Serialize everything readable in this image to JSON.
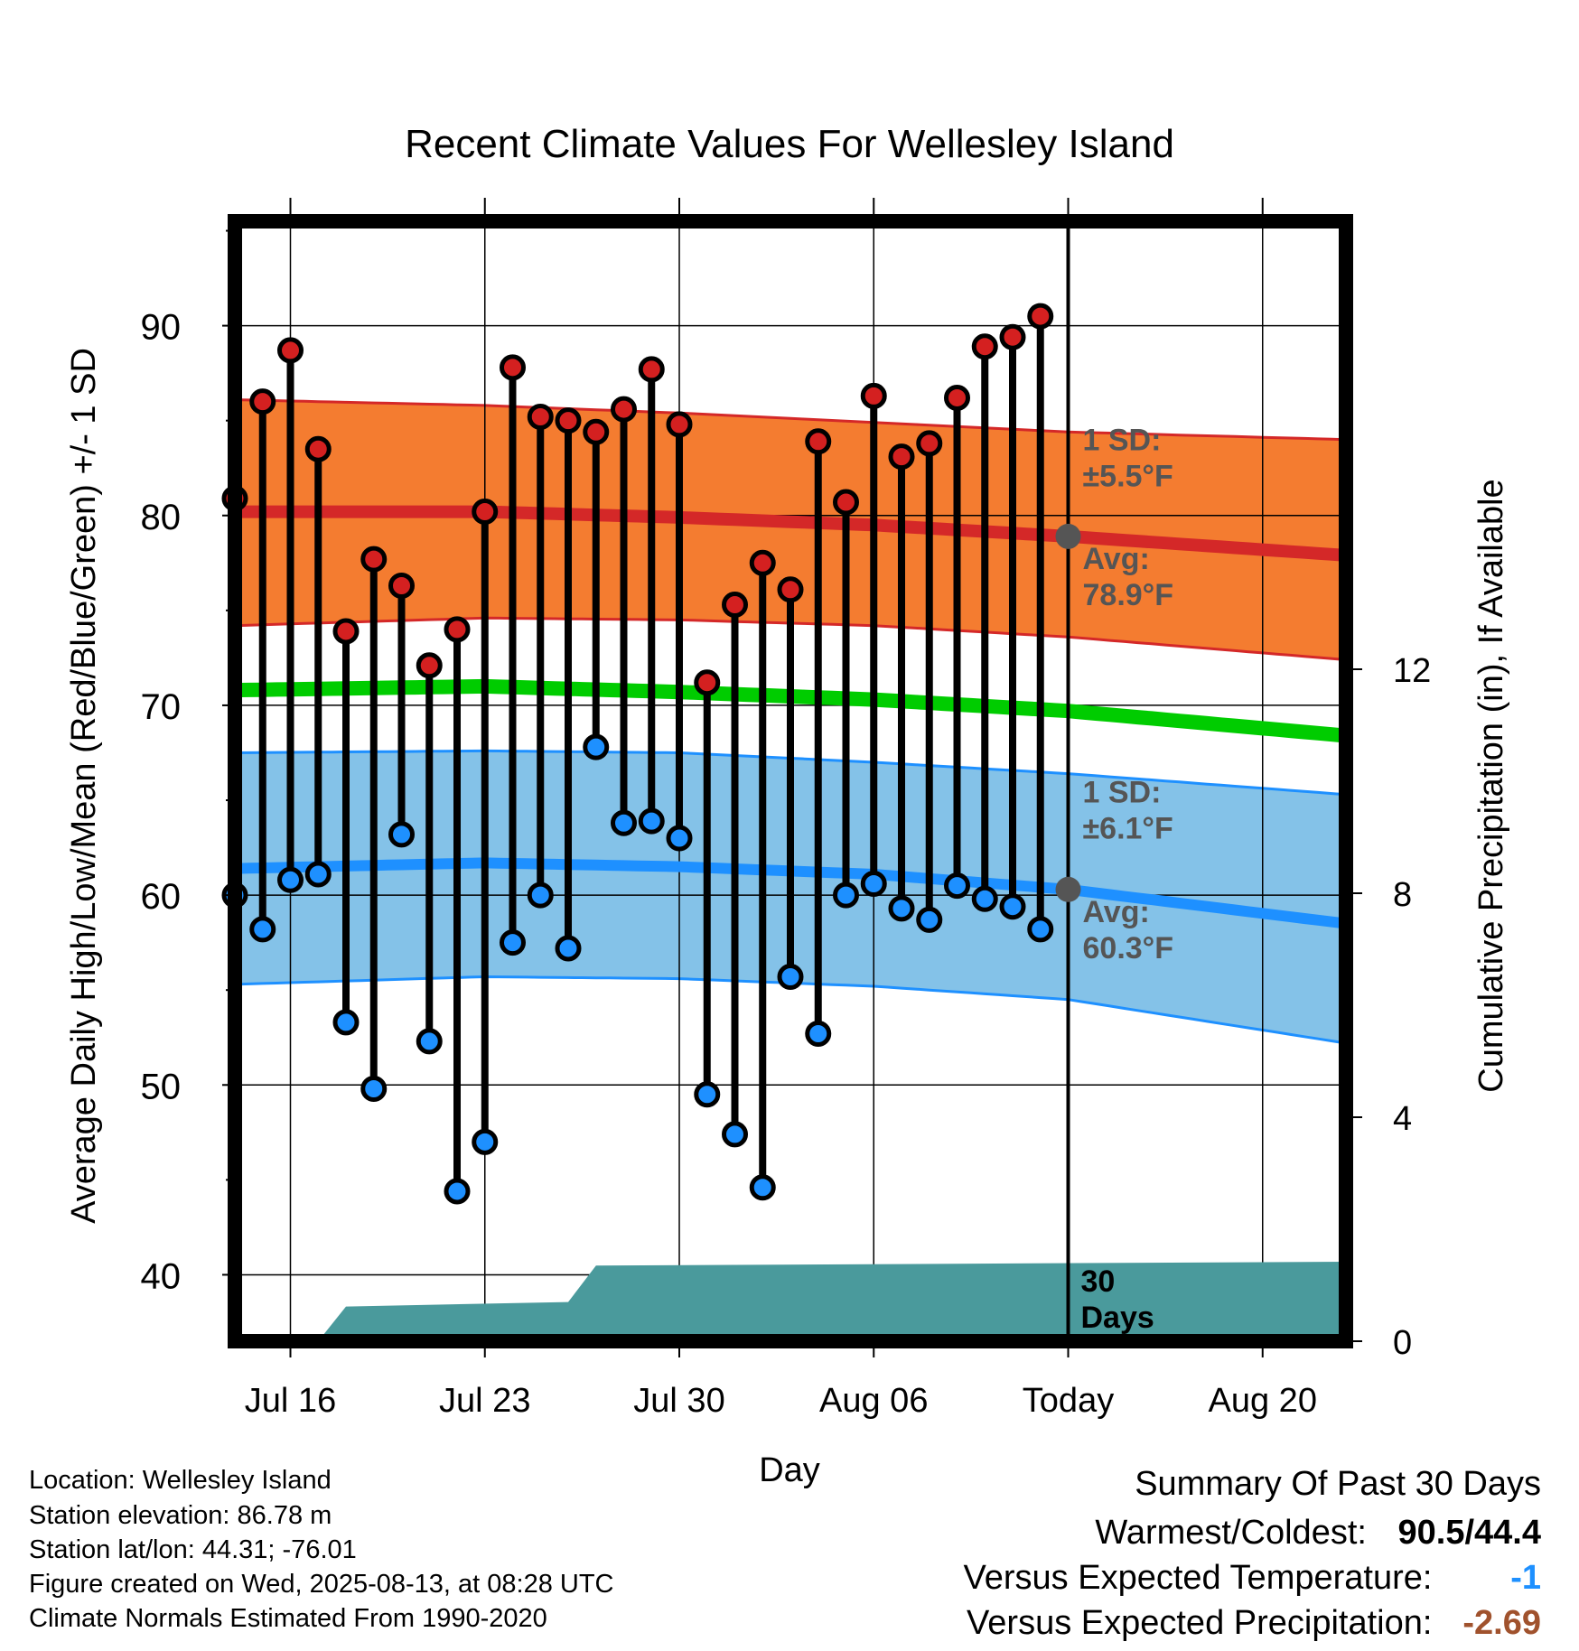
{
  "chart_data": {
    "type": "line",
    "title": "Recent Climate Values For Wellesley Island",
    "xlabel": "Day",
    "ylabel": "Average Daily High/Low/Mean (Red/Blue/Green) +/- 1 SD",
    "y2label": "Cumulative Precipitation (in), If Available",
    "ylim": [
      36.5,
      95.5
    ],
    "y_ticks": [
      40,
      50,
      60,
      70,
      80,
      90
    ],
    "y2lim": [
      0,
      20
    ],
    "y2_ticks": [
      0,
      4,
      8,
      12
    ],
    "x_start": "Jul 14",
    "x_end": "Aug 23",
    "x_ticks": [
      {
        "date": "Jul 16",
        "label": "Jul 16"
      },
      {
        "date": "Jul 23",
        "label": "Jul 23"
      },
      {
        "date": "Jul 30",
        "label": "Jul 30"
      },
      {
        "date": "Aug 06",
        "label": "Aug 06"
      },
      {
        "date": "Aug 13",
        "label": "Today"
      },
      {
        "date": "Aug 20",
        "label": "Aug 20"
      }
    ],
    "today": "Aug 13",
    "today_label": [
      "30",
      "Days"
    ],
    "days": [
      "Jul 14",
      "Jul 15",
      "Jul 16",
      "Jul 17",
      "Jul 18",
      "Jul 19",
      "Jul 20",
      "Jul 21",
      "Jul 22",
      "Jul 23",
      "Jul 24",
      "Jul 25",
      "Jul 26",
      "Jul 27",
      "Jul 28",
      "Jul 29",
      "Jul 30",
      "Jul 31",
      "Aug 01",
      "Aug 02",
      "Aug 03",
      "Aug 04",
      "Aug 05",
      "Aug 06",
      "Aug 07",
      "Aug 08",
      "Aug 09",
      "Aug 10",
      "Aug 11",
      "Aug 12"
    ],
    "daily_high": [
      80.9,
      86.0,
      88.7,
      83.5,
      73.9,
      77.7,
      76.3,
      72.1,
      74.0,
      80.2,
      87.8,
      85.2,
      85.0,
      84.4,
      85.6,
      87.7,
      84.8,
      71.2,
      75.3,
      77.5,
      76.1,
      83.9,
      80.7,
      86.3,
      83.1,
      83.8,
      86.2,
      88.9,
      89.4,
      90.5
    ],
    "daily_low": [
      60.0,
      58.2,
      60.8,
      61.1,
      53.3,
      49.8,
      63.2,
      52.3,
      44.4,
      47.0,
      57.5,
      60.0,
      57.2,
      67.8,
      63.8,
      63.9,
      63.0,
      49.5,
      47.4,
      44.6,
      55.7,
      52.7,
      60.0,
      60.6,
      59.3,
      58.7,
      60.5,
      59.8,
      59.4,
      58.2
    ],
    "normal_days": [
      "Jul 14",
      "Jul 23",
      "Jul 30",
      "Aug 06",
      "Aug 13",
      "Aug 23"
    ],
    "normal_high": [
      80.2,
      80.2,
      79.9,
      79.5,
      78.9,
      77.9
    ],
    "normal_high_upper": [
      86.1,
      85.8,
      85.4,
      84.9,
      84.4,
      84.0
    ],
    "normal_high_lower": [
      74.2,
      74.6,
      74.5,
      74.2,
      73.6,
      72.4
    ],
    "normal_mean": [
      70.8,
      71.0,
      70.7,
      70.3,
      69.7,
      68.4
    ],
    "normal_low": [
      61.4,
      61.7,
      61.5,
      61.1,
      60.3,
      58.5
    ],
    "normal_low_upper": [
      67.5,
      67.6,
      67.5,
      67.0,
      66.4,
      65.3
    ],
    "normal_low_lower": [
      55.3,
      55.7,
      55.6,
      55.2,
      54.5,
      52.2
    ],
    "precip_days": [
      "Jul 14",
      "Jul 17",
      "Jul 18",
      "Jul 26",
      "Jul 27",
      "Aug 23"
    ],
    "precip_values": [
      0.0,
      0.0,
      0.62,
      0.7,
      1.35,
      1.42
    ],
    "annotations": {
      "high_sd_title": "1 SD:",
      "high_sd_value": "±5.5°F",
      "high_avg_title": "Avg:",
      "high_avg_value": "78.9°F",
      "low_sd_title": "1 SD:",
      "low_sd_value": "±6.1°F",
      "low_avg_title": "Avg:",
      "low_avg_value": "60.3°F"
    },
    "colors": {
      "high_band": "#F47C30",
      "high_line": "#D42828",
      "high_edge": "#D42828",
      "low_band": "#84C2E8",
      "low_line": "#1E90FF",
      "low_edge": "#1E90FF",
      "mean_line": "#00CC00",
      "high_dot": "#D42020",
      "low_dot": "#1E90FF",
      "precip": "#4A9A9C",
      "today_dot": "#555555",
      "annotation": "#555555"
    },
    "grid": true
  },
  "footer": {
    "location": "Location: Wellesley Island",
    "elevation": "Station elevation: 86.78 m",
    "latlon": "Station lat/lon: 44.31; -76.01",
    "created": "Figure created on Wed, 2025-08-13, at 08:28 UTC",
    "normals": "Climate Normals Estimated From 1990-2020"
  },
  "summary": {
    "heading": "Summary Of Past 30 Days",
    "warm_cold_label": "Warmest/Coldest:",
    "warm_cold_value": "90.5/44.4",
    "temp_label": "Versus Expected Temperature:",
    "temp_value": "-1",
    "temp_color": "#1E90FF",
    "precip_label": "Versus Expected Precipitation:",
    "precip_value": "-2.69",
    "precip_color": "#A0522D"
  }
}
